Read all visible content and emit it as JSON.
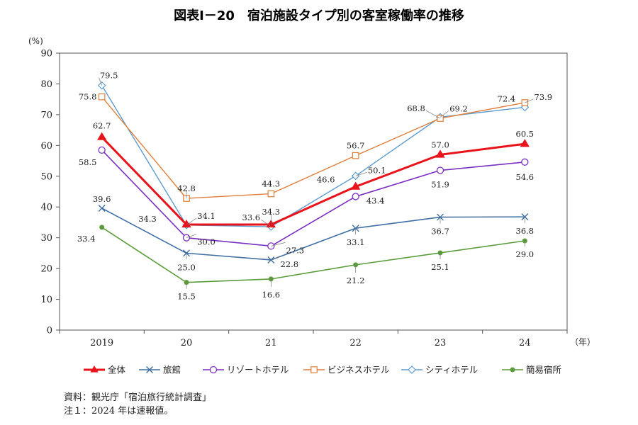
{
  "chart_data": {
    "type": "line",
    "title": "図表Ⅰ－20　宿泊施設タイプ別の客室稼働率の推移",
    "ylabel": "(%)",
    "xlabel": "（年）",
    "ylim": [
      0,
      90
    ],
    "yticks": [
      0,
      10,
      20,
      30,
      40,
      50,
      60,
      70,
      80,
      90
    ],
    "categories": [
      "2019",
      "20",
      "21",
      "22",
      "23",
      "24"
    ],
    "grid": false,
    "legend_position": "bottom",
    "series": [
      {
        "name": "全体",
        "color": "#e8131b",
        "marker": "triangle",
        "values": [
          62.7,
          34.3,
          34.3,
          46.6,
          57.0,
          60.5
        ]
      },
      {
        "name": "旅館",
        "color": "#3f6fa3",
        "marker": "x",
        "values": [
          39.6,
          25.0,
          22.8,
          33.1,
          36.7,
          36.8
        ]
      },
      {
        "name": "リゾートホテル",
        "color": "#7a2fc2",
        "marker": "circle-open",
        "values": [
          58.5,
          30.0,
          27.3,
          43.4,
          51.9,
          54.6
        ]
      },
      {
        "name": "ビジネスホテル",
        "color": "#e07f3c",
        "marker": "square-open",
        "values": [
          75.8,
          42.8,
          44.3,
          56.7,
          68.8,
          73.9
        ]
      },
      {
        "name": "シティホテル",
        "color": "#5e9ccf",
        "marker": "diamond-open",
        "values": [
          79.5,
          34.1,
          33.6,
          50.1,
          69.2,
          72.4
        ]
      },
      {
        "name": "簡易宿所",
        "color": "#5b9b3c",
        "marker": "dot",
        "values": [
          33.4,
          15.5,
          16.6,
          21.2,
          25.1,
          29.0
        ]
      }
    ]
  },
  "notes": [
    "資料：観光庁「宿泊旅行統計調査」",
    "注１：2024 年は速報値。"
  ]
}
